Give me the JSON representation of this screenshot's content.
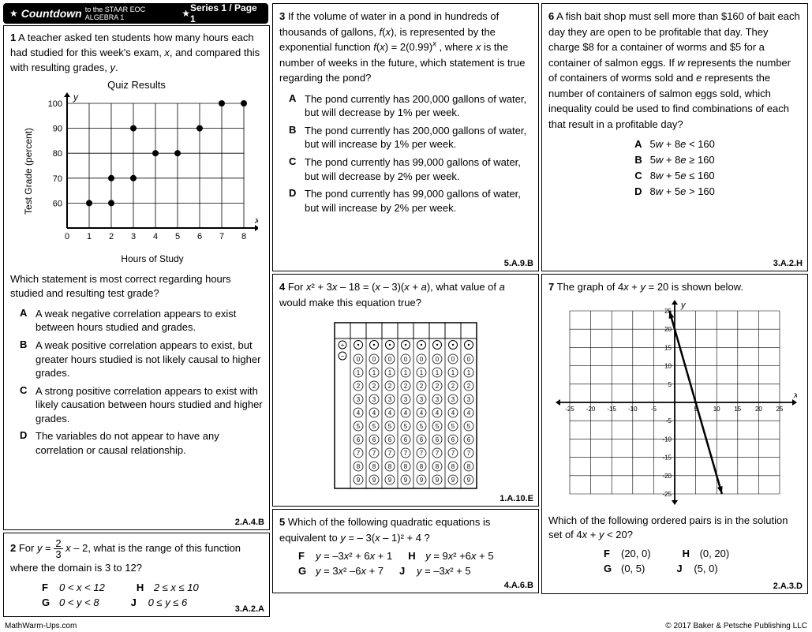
{
  "header": {
    "title_main": "Countdown",
    "title_sub": "to the STAAR EOC ALGEBRA 1",
    "series": "Series 1 / Page 1"
  },
  "footer": {
    "left": "MathWarm-Ups.com",
    "right": "© 2017 Baker & Petsche Publishing LLC"
  },
  "q1": {
    "num": "1",
    "text_a": "A teacher asked ten students how many hours each had studied for this week's exam, ",
    "text_b": ", and compared this with resulting grades, ",
    "text_c": ".",
    "chart_title": "Quiz Results",
    "ylabel": "Test Grade (percent)",
    "xlabel": "Hours of Study",
    "prompt": "Which statement is most correct regarding hours studied and resulting test grade?",
    "A": "A weak negative correlation appears to exist between hours studied and grades.",
    "B": "A weak positive correlation appears to exist, but greater hours studied is not likely causal to higher grades.",
    "C": "A strong positive correlation appears to exist with likely causation between hours studied and higher grades.",
    "D": "The variables do not appear to have any correlation or causal relationship.",
    "code": "2.A.4.B",
    "chart": {
      "xmin": 0,
      "xmax": 8,
      "ymin": 50,
      "ymax": 100,
      "ystep": 10,
      "points": [
        [
          1,
          60
        ],
        [
          2,
          60
        ],
        [
          2,
          70
        ],
        [
          3,
          70
        ],
        [
          3,
          90
        ],
        [
          4,
          80
        ],
        [
          5,
          80
        ],
        [
          6,
          90
        ],
        [
          7,
          100
        ],
        [
          8,
          100
        ]
      ],
      "grid_color": "#000",
      "bg": "#fff",
      "point_color": "#000"
    }
  },
  "q2": {
    "num": "2",
    "prompt_pre": "For ",
    "prompt_post": ", what is the range of this function where the domain is 3 to 12?",
    "F": "0 < x < 12",
    "G": "0 < y < 8",
    "H": "2 ≤ x ≤ 10",
    "J": "0 ≤ y ≤ 6",
    "code": "3.A.2.A"
  },
  "q3": {
    "num": "3",
    "text": "If the volume of water in a pond in hundreds of thousands of gallons, f(x), is represented by the exponential function f(x) = 2(0.99)^x , where x is the number of weeks in the future, which statement is true regarding the pond?",
    "A": "The pond currently has 200,000 gallons of water, but will decrease by 1% per week.",
    "B": "The pond currently has 200,000 gallons of water, but will increase by 1% per week.",
    "C": "The pond currently has 99,000 gallons of water, but will decrease by 2% per week.",
    "D": "The pond currently has 99,000 gallons of water, but will increase by 2% per week.",
    "code": "5.A.9.B"
  },
  "q4": {
    "num": "4",
    "text_a": "For ",
    "text_b": ", what value of ",
    "text_c": " would make this equation true?",
    "code": "1.A.10.E"
  },
  "q5": {
    "num": "5",
    "text": "Which of the following quadratic equations is equivalent to y = – 3(x – 1)² + 4 ?",
    "F": "y = –3x² + 6x + 1",
    "G": "y = 3x² –6x + 7",
    "H": "y = 9x² +6x + 5",
    "J": "y = –3x² + 5",
    "code": "4.A.6.B"
  },
  "q6": {
    "num": "6",
    "text": "A fish bait shop must sell more than $160 of bait each day they are open to be profitable that day. They charge $8 for a container of worms and $5 for a container of salmon eggs. If w represents the number of containers of worms sold and e represents the number of containers of salmon eggs sold, which inequality could be used to find combinations of each that result in a profitable day?",
    "A": "5w + 8e < 160",
    "B": "5w + 8e ≥ 160",
    "C": "8w + 5e ≤ 160",
    "D": "8w + 5e > 160",
    "code": "3.A.2.H"
  },
  "q7": {
    "num": "7",
    "text": "The graph of 4x + y = 20 is shown below.",
    "prompt": "Which of the following ordered pairs is in the solution set of 4x + y < 20?",
    "F": "(20, 0)",
    "G": "(0, 5)",
    "H": "(0, 20)",
    "J": "(5, 0)",
    "code": "2.A.3.D",
    "graph": {
      "xmin": -25,
      "xmax": 25,
      "ymin": -25,
      "ymax": 25,
      "step": 5,
      "grid_color": "#000",
      "line_color": "#000",
      "line_p1": [
        -1.25,
        25
      ],
      "line_p2": [
        11.25,
        -25
      ]
    }
  }
}
